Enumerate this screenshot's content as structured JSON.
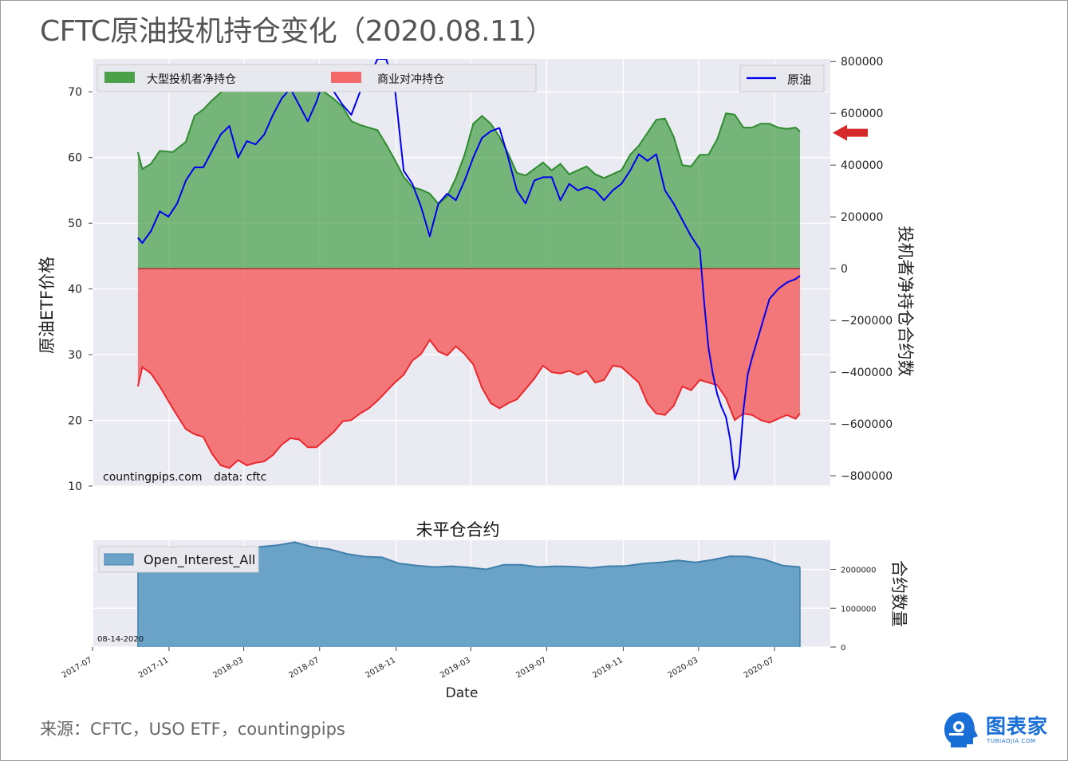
{
  "title": "CFTC原油投机持仓变化（2020.08.11）",
  "source": "来源：CFTC，USO ETF，countingpips",
  "logo": {
    "name": "图表家",
    "sub": "TUBIAOJIA.COM",
    "icon": "robot-head-icon"
  },
  "colors": {
    "spec_fill": "#4aa14a",
    "spec_line": "#2e8b2e",
    "comm_fill": "#f46a6a",
    "comm_line": "#e8282d",
    "oil_line": "#0000ee",
    "oi_fill": "#6ba3c8",
    "oi_line": "#3f7fab",
    "arrow": "#d62a2a",
    "plot_bg": "#eaeaf2"
  },
  "chart_data": [
    {
      "type": "area",
      "xlabel": "",
      "ylabel_left": "原油ETF价格",
      "ylabel_right": "投机者净持仓合约数",
      "ylim_left": [
        10,
        75
      ],
      "ylim_right": [
        -840000,
        810000
      ],
      "yticks_left": [
        10,
        20,
        30,
        40,
        50,
        60,
        70
      ],
      "yticks_right": [
        800000,
        600000,
        400000,
        200000,
        0,
        -200000,
        -400000,
        -600000,
        -800000
      ],
      "ytick_labels_right": [
        "800000",
        "600000",
        "400000",
        "200000",
        "0",
        "−200000",
        "−400000",
        "−600000",
        "−800000"
      ],
      "annotations": [
        "countingpips.com",
        "data: cftc"
      ],
      "grid": true,
      "legend": "top",
      "arrow_right_at": 525000,
      "series": [
        {
          "name": "大型投机者净持仓",
          "kind": "area",
          "x": [
            "2017-09-12",
            "2017-09-19",
            "2017-10-03",
            "2017-10-17",
            "2017-11-07",
            "2017-11-28",
            "2017-12-12",
            "2017-12-26",
            "2018-01-09",
            "2018-01-23",
            "2018-02-06",
            "2018-02-20",
            "2018-03-06",
            "2018-03-20",
            "2018-04-03",
            "2018-04-17",
            "2018-05-01",
            "2018-05-15",
            "2018-05-29",
            "2018-06-12",
            "2018-06-26",
            "2018-07-10",
            "2018-07-24",
            "2018-08-07",
            "2018-08-21",
            "2018-09-04",
            "2018-09-18",
            "2018-10-02",
            "2018-10-16",
            "2018-10-30",
            "2018-11-13",
            "2018-11-27",
            "2018-12-11",
            "2018-12-25",
            "2019-01-08",
            "2019-01-22",
            "2019-02-05",
            "2019-02-19",
            "2019-03-05",
            "2019-03-19",
            "2019-04-02",
            "2019-04-16",
            "2019-04-30",
            "2019-05-14",
            "2019-05-28",
            "2019-06-11",
            "2019-06-25",
            "2019-07-09",
            "2019-07-23",
            "2019-08-06",
            "2019-08-20",
            "2019-09-03",
            "2019-09-17",
            "2019-10-01",
            "2019-10-15",
            "2019-10-29",
            "2019-11-12",
            "2019-11-26",
            "2019-12-10",
            "2019-12-24",
            "2020-01-07",
            "2020-01-21",
            "2020-02-04",
            "2020-02-18",
            "2020-03-03",
            "2020-03-17",
            "2020-03-31",
            "2020-04-14",
            "2020-04-28",
            "2020-05-12",
            "2020-05-26",
            "2020-06-09",
            "2020-06-23",
            "2020-07-07",
            "2020-07-21",
            "2020-08-04",
            "2020-08-11"
          ],
          "values": [
            450000,
            385000,
            405000,
            455000,
            450000,
            490000,
            590000,
            615000,
            650000,
            680000,
            705000,
            722000,
            712000,
            725000,
            710000,
            735000,
            725000,
            715000,
            730000,
            720000,
            700000,
            680000,
            655000,
            625000,
            570000,
            555000,
            545000,
            535000,
            480000,
            420000,
            355000,
            315000,
            305000,
            290000,
            250000,
            280000,
            350000,
            440000,
            560000,
            590000,
            560000,
            510000,
            445000,
            370000,
            360000,
            385000,
            410000,
            380000,
            405000,
            365000,
            380000,
            395000,
            365000,
            350000,
            365000,
            380000,
            440000,
            475000,
            525000,
            575000,
            580000,
            510000,
            400000,
            395000,
            440000,
            440000,
            500000,
            600000,
            595000,
            545000,
            545000,
            560000,
            560000,
            545000,
            540000,
            545000,
            530000
          ]
        },
        {
          "name": "商业对冲持仓",
          "kind": "area",
          "x": [
            "2017-09-12",
            "2017-09-19",
            "2017-10-03",
            "2017-10-17",
            "2017-11-07",
            "2017-11-28",
            "2017-12-12",
            "2017-12-26",
            "2018-01-09",
            "2018-01-23",
            "2018-02-06",
            "2018-02-20",
            "2018-03-06",
            "2018-03-20",
            "2018-04-03",
            "2018-04-17",
            "2018-05-01",
            "2018-05-15",
            "2018-05-29",
            "2018-06-12",
            "2018-06-26",
            "2018-07-10",
            "2018-07-24",
            "2018-08-07",
            "2018-08-21",
            "2018-09-04",
            "2018-09-18",
            "2018-10-02",
            "2018-10-16",
            "2018-10-30",
            "2018-11-13",
            "2018-11-27",
            "2018-12-11",
            "2018-12-25",
            "2019-01-08",
            "2019-01-22",
            "2019-02-05",
            "2019-02-19",
            "2019-03-05",
            "2019-03-19",
            "2019-04-02",
            "2019-04-16",
            "2019-04-30",
            "2019-05-14",
            "2019-05-28",
            "2019-06-11",
            "2019-06-25",
            "2019-07-09",
            "2019-07-23",
            "2019-08-06",
            "2019-08-20",
            "2019-09-03",
            "2019-09-17",
            "2019-10-01",
            "2019-10-15",
            "2019-10-29",
            "2019-11-12",
            "2019-11-26",
            "2019-12-10",
            "2019-12-24",
            "2020-01-07",
            "2020-01-21",
            "2020-02-04",
            "2020-02-18",
            "2020-03-03",
            "2020-03-17",
            "2020-03-31",
            "2020-04-14",
            "2020-04-28",
            "2020-05-12",
            "2020-05-26",
            "2020-06-09",
            "2020-06-23",
            "2020-07-07",
            "2020-07-21",
            "2020-08-04",
            "2020-08-11"
          ],
          "values": [
            -455000,
            -380000,
            -405000,
            -455000,
            -540000,
            -620000,
            -640000,
            -650000,
            -715000,
            -760000,
            -770000,
            -740000,
            -760000,
            -750000,
            -745000,
            -720000,
            -680000,
            -655000,
            -660000,
            -690000,
            -690000,
            -660000,
            -630000,
            -590000,
            -585000,
            -560000,
            -540000,
            -510000,
            -475000,
            -440000,
            -410000,
            -355000,
            -330000,
            -275000,
            -320000,
            -335000,
            -300000,
            -330000,
            -370000,
            -460000,
            -520000,
            -540000,
            -520000,
            -505000,
            -465000,
            -425000,
            -375000,
            -400000,
            -405000,
            -395000,
            -410000,
            -395000,
            -440000,
            -430000,
            -375000,
            -380000,
            -410000,
            -440000,
            -520000,
            -560000,
            -565000,
            -530000,
            -455000,
            -470000,
            -430000,
            -440000,
            -450000,
            -500000,
            -585000,
            -560000,
            -565000,
            -585000,
            -595000,
            -580000,
            -565000,
            -580000,
            -560000
          ]
        },
        {
          "name": "原油",
          "kind": "line",
          "axis": "left",
          "x": [
            "2017-09-12",
            "2017-09-19",
            "2017-10-03",
            "2017-10-17",
            "2017-10-31",
            "2017-11-14",
            "2017-11-28",
            "2017-12-12",
            "2017-12-26",
            "2018-01-09",
            "2018-01-23",
            "2018-02-06",
            "2018-02-20",
            "2018-03-06",
            "2018-03-20",
            "2018-04-03",
            "2018-04-17",
            "2018-05-01",
            "2018-05-15",
            "2018-05-29",
            "2018-06-12",
            "2018-06-26",
            "2018-07-10",
            "2018-07-24",
            "2018-08-07",
            "2018-08-21",
            "2018-09-04",
            "2018-09-18",
            "2018-10-02",
            "2018-10-16",
            "2018-10-30",
            "2018-11-13",
            "2018-11-27",
            "2018-12-11",
            "2018-12-25",
            "2019-01-08",
            "2019-01-22",
            "2019-02-05",
            "2019-02-19",
            "2019-03-05",
            "2019-03-19",
            "2019-04-02",
            "2019-04-16",
            "2019-04-30",
            "2019-05-14",
            "2019-05-28",
            "2019-06-11",
            "2019-06-25",
            "2019-07-09",
            "2019-07-23",
            "2019-08-06",
            "2019-08-20",
            "2019-09-03",
            "2019-09-17",
            "2019-10-01",
            "2019-10-15",
            "2019-10-29",
            "2019-11-12",
            "2019-11-26",
            "2019-12-10",
            "2019-12-24",
            "2020-01-07",
            "2020-01-21",
            "2020-02-04",
            "2020-02-18",
            "2020-03-03",
            "2020-03-10",
            "2020-03-17",
            "2020-03-24",
            "2020-03-31",
            "2020-04-07",
            "2020-04-14",
            "2020-04-21",
            "2020-04-28",
            "2020-05-05",
            "2020-05-12",
            "2020-05-19",
            "2020-05-26",
            "2020-06-09",
            "2020-06-23",
            "2020-07-07",
            "2020-07-21",
            "2020-08-04",
            "2020-08-11"
          ],
          "values": [
            47.8,
            47.0,
            48.8,
            51.8,
            51.0,
            53.0,
            56.5,
            58.5,
            58.5,
            61.0,
            63.5,
            64.8,
            60.0,
            62.5,
            62.0,
            63.5,
            66.5,
            69.0,
            70.5,
            68.0,
            65.5,
            68.5,
            72.5,
            70.0,
            68.0,
            66.5,
            70.0,
            72.0,
            75.0,
            75.0,
            70.5,
            58.0,
            56.0,
            52.5,
            48.0,
            53.0,
            54.5,
            53.5,
            56.5,
            60.0,
            63.0,
            64.0,
            64.5,
            60.0,
            55.0,
            53.0,
            56.5,
            57.0,
            57.0,
            53.5,
            56.0,
            55.0,
            55.5,
            55.0,
            53.5,
            55.0,
            56.0,
            58.0,
            60.5,
            59.5,
            60.5,
            55.0,
            53.0,
            50.5,
            48.0,
            46.0,
            38.0,
            31.0,
            27.0,
            24.0,
            22.0,
            20.5,
            17.0,
            11.0,
            13.0,
            21.5,
            27.0,
            29.5,
            34.0,
            38.5,
            40.0,
            41.0,
            41.5,
            42.0
          ]
        }
      ]
    },
    {
      "type": "area",
      "title": "未平仓合约",
      "xlabel": "Date",
      "ylabel_right": "合约数量",
      "ylim": [
        0,
        2750000
      ],
      "yticks": [
        0,
        1000000,
        2000000
      ],
      "xticks": [
        "2017-07",
        "2017-11",
        "2018-03",
        "2018-07",
        "2018-11",
        "2019-03",
        "2019-07",
        "2019-11",
        "2020-03",
        "2020-07"
      ],
      "annotation": "08-14-2020",
      "legend": "top-left",
      "grid": true,
      "series": [
        {
          "name": "Open_Interest_All",
          "x": [
            "2017-09-12",
            "2017-10-10",
            "2017-11-07",
            "2017-12-05",
            "2018-01-02",
            "2018-01-30",
            "2018-02-27",
            "2018-03-27",
            "2018-04-24",
            "2018-05-22",
            "2018-06-19",
            "2018-07-17",
            "2018-08-14",
            "2018-09-11",
            "2018-10-09",
            "2018-11-06",
            "2018-12-04",
            "2019-01-01",
            "2019-01-29",
            "2019-02-26",
            "2019-03-26",
            "2019-04-23",
            "2019-05-21",
            "2019-06-18",
            "2019-07-16",
            "2019-08-13",
            "2019-09-10",
            "2019-10-08",
            "2019-11-05",
            "2019-12-03",
            "2019-12-31",
            "2020-01-28",
            "2020-02-25",
            "2020-03-24",
            "2020-04-21",
            "2020-05-19",
            "2020-06-16",
            "2020-07-14",
            "2020-08-11"
          ],
          "values": [
            2400000,
            2450000,
            2420000,
            2480000,
            2500000,
            2450000,
            2530000,
            2580000,
            2620000,
            2700000,
            2580000,
            2520000,
            2400000,
            2330000,
            2310000,
            2150000,
            2100000,
            2060000,
            2080000,
            2050000,
            2000000,
            2120000,
            2120000,
            2060000,
            2080000,
            2070000,
            2040000,
            2080000,
            2090000,
            2150000,
            2180000,
            2230000,
            2180000,
            2250000,
            2340000,
            2330000,
            2250000,
            2100000,
            2060000
          ]
        }
      ]
    }
  ]
}
